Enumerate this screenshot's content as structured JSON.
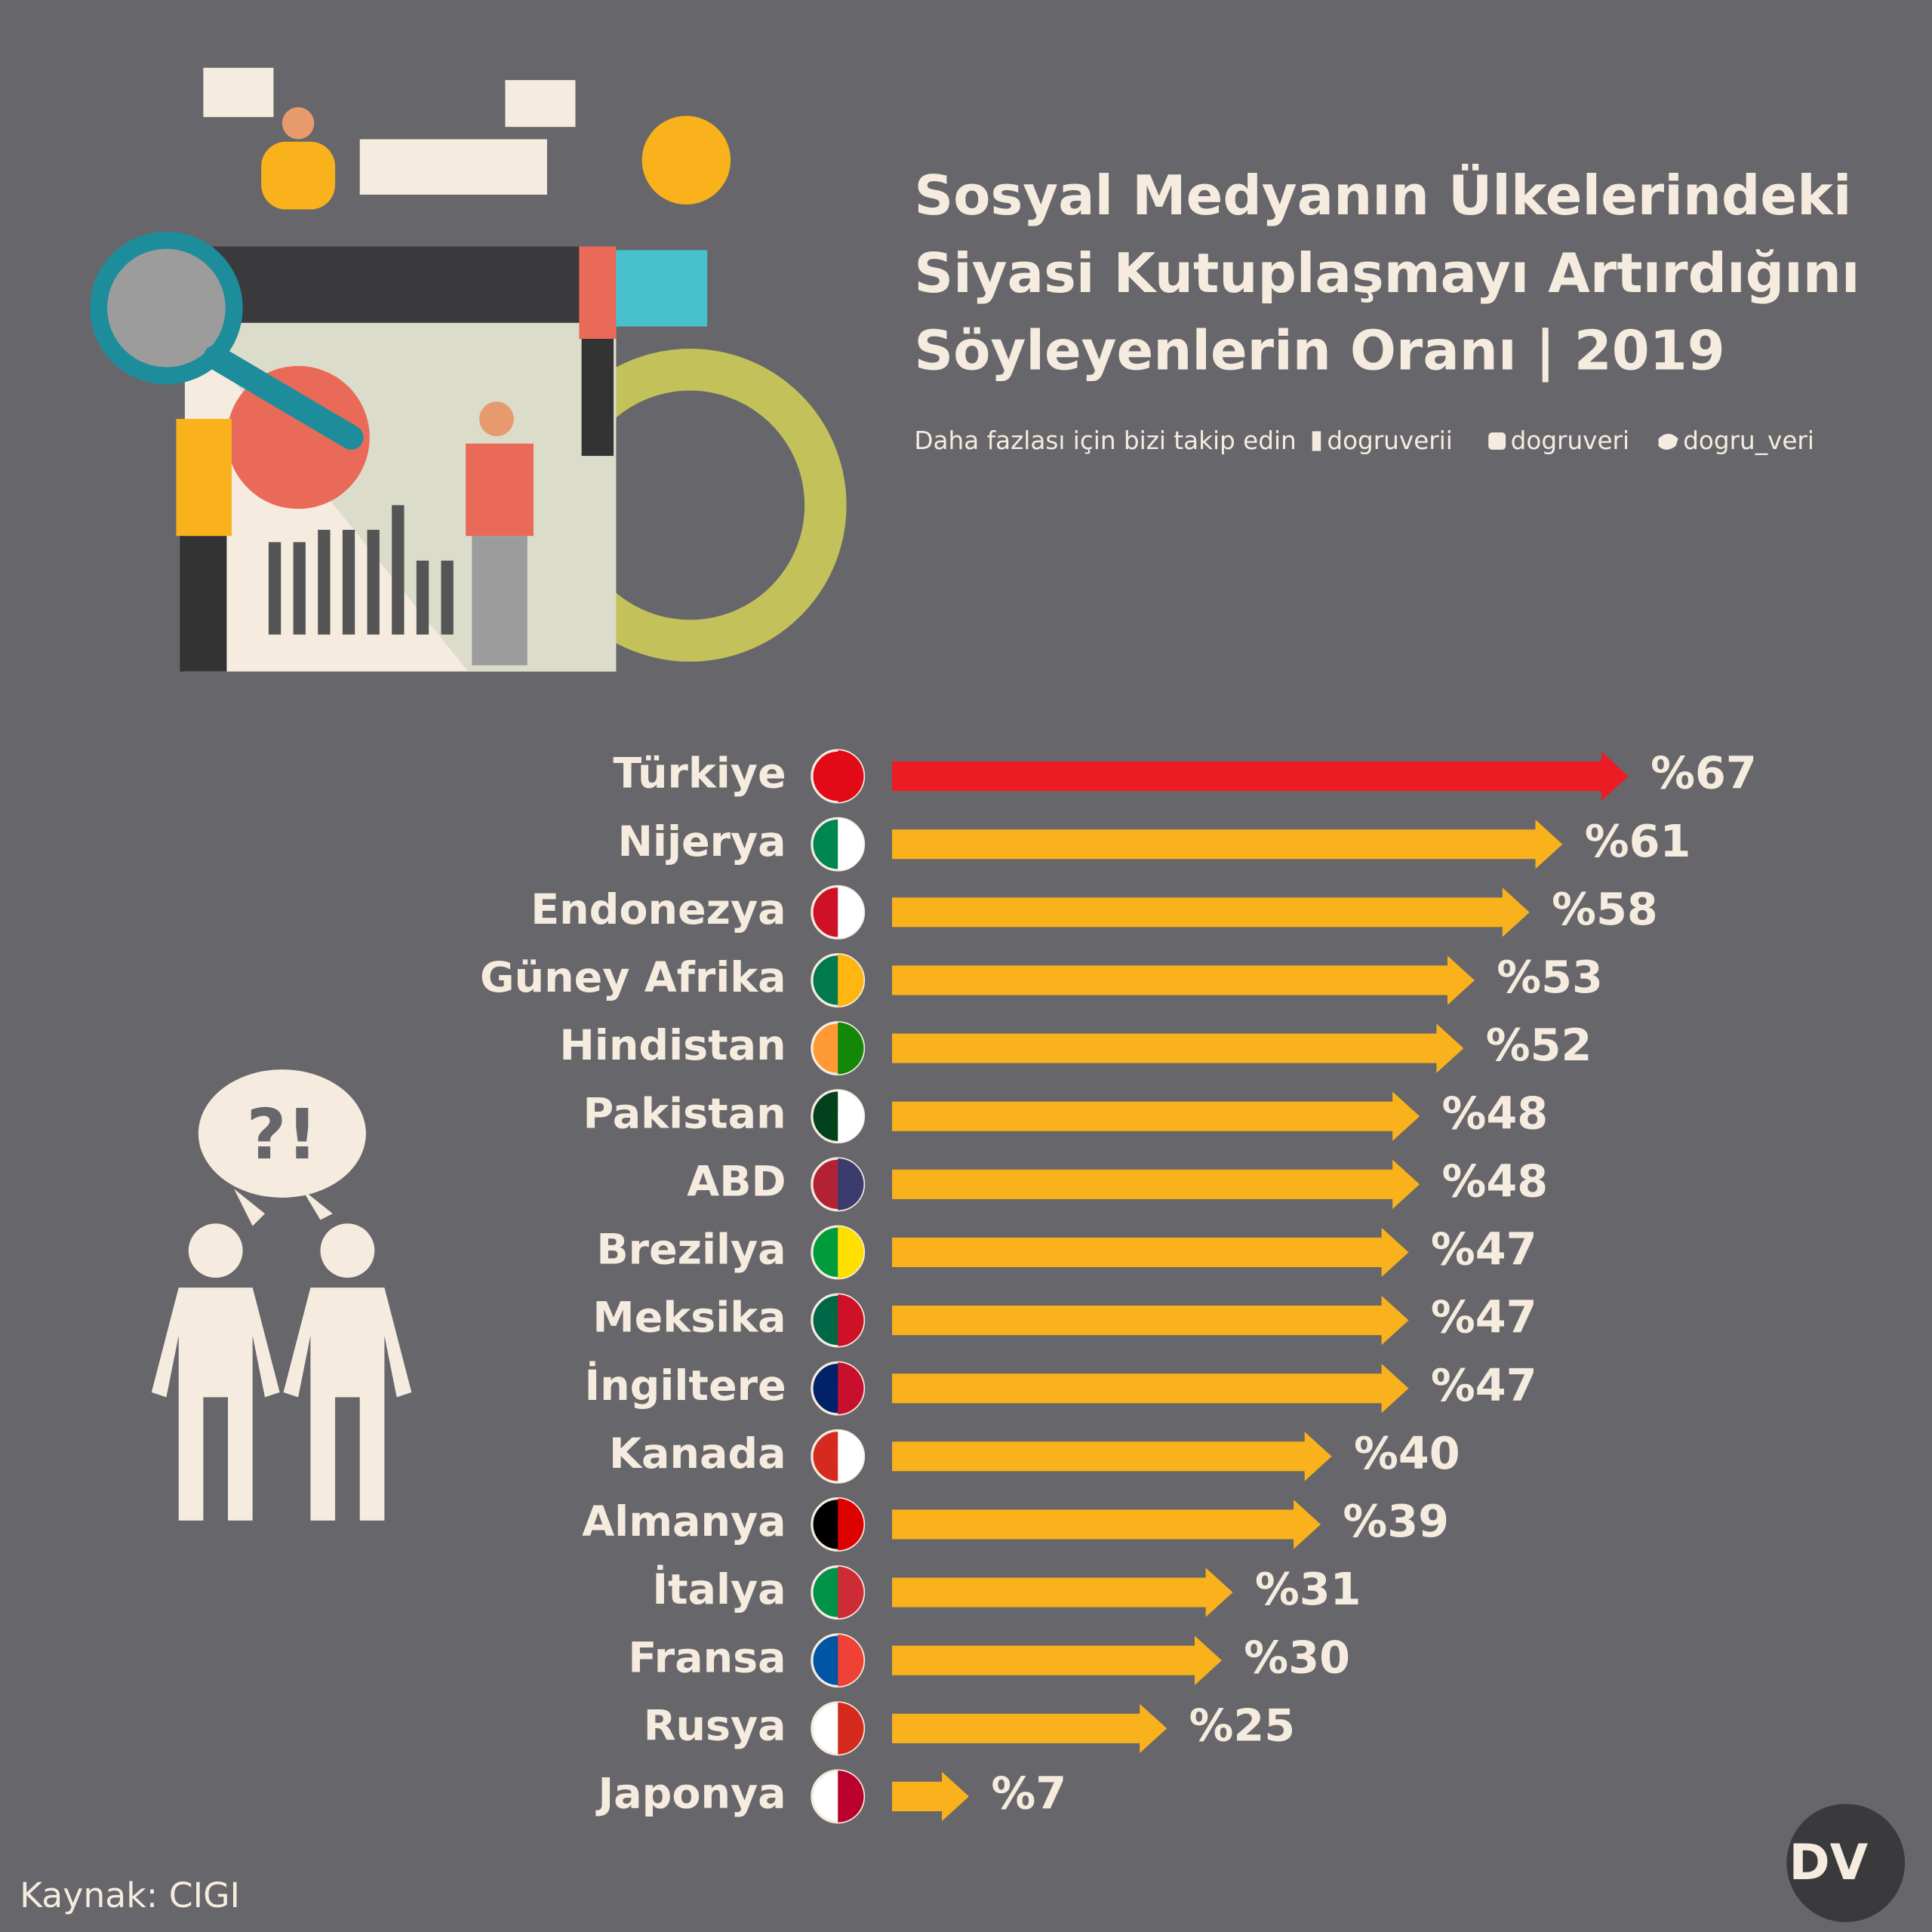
{
  "chart_data": {
    "type": "hbar",
    "title": [
      "Sosyal Medyanın Ülkelerindeki",
      "Siyasi Kutuplaşmayı Artırdığını",
      "Söyleyenlerin Oranı | 2019"
    ],
    "follow": "Daha fazlası için bizi takip edin",
    "social": [
      "dogruverii",
      "dogruveri",
      "dogru_veri"
    ],
    "categories": [
      "Türkiye",
      "Nijerya",
      "Endonezya",
      "Güney Afrika",
      "Hindistan",
      "Pakistan",
      "ABD",
      "Brezilya",
      "Meksika",
      "İngiltere",
      "Kanada",
      "Almanya",
      "İtalya",
      "Fransa",
      "Rusya",
      "Japonya"
    ],
    "values": [
      67,
      61,
      58,
      53,
      52,
      48,
      48,
      47,
      47,
      47,
      40,
      39,
      31,
      30,
      25,
      7
    ],
    "value_labels": [
      "%67",
      "%61",
      "%58",
      "%53",
      "%52",
      "%48",
      "%48",
      "%47",
      "%47",
      "%47",
      "%40",
      "%39",
      "%31",
      "%30",
      "%25",
      "%7"
    ],
    "colors": [
      "#ed1c24",
      "#f9b21b",
      "#f9b21b",
      "#f9b21b",
      "#f9b21b",
      "#f9b21b",
      "#f9b21b",
      "#f9b21b",
      "#f9b21b",
      "#f9b21b",
      "#f9b21b",
      "#f9b21b",
      "#f9b21b",
      "#f9b21b",
      "#f9b21b",
      "#f9b21b"
    ],
    "source": "Kaynak: CIGI",
    "logo": "DV"
  }
}
